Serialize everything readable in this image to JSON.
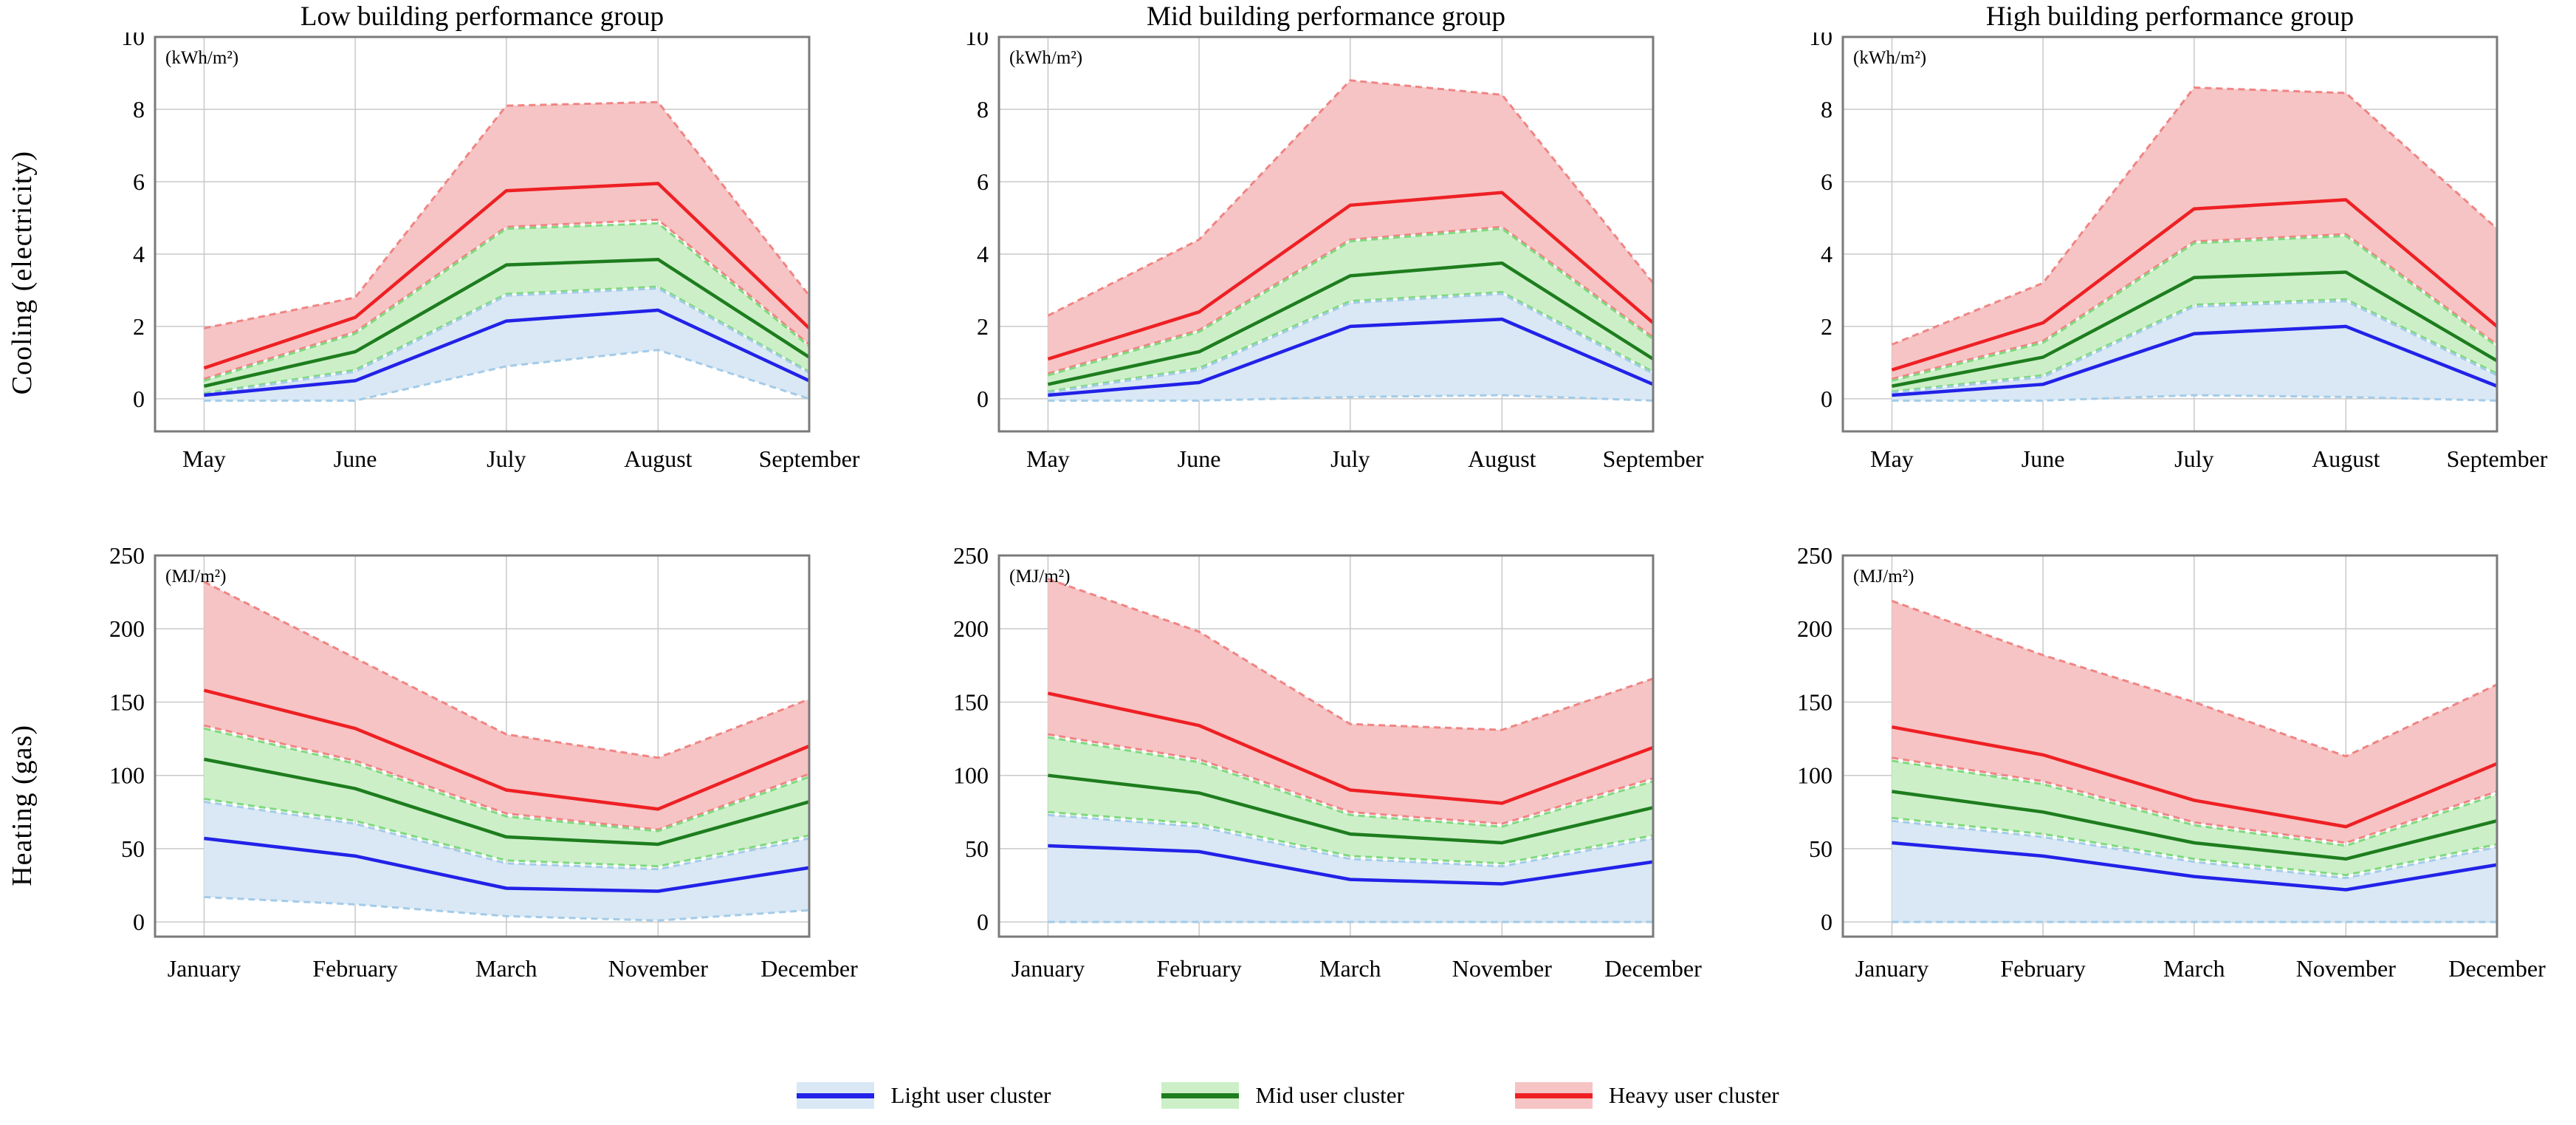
{
  "columns": [
    "Low building performance group",
    "Mid building performance group",
    "High building performance group"
  ],
  "rows": [
    {
      "ylabel": "Cooling (electricity)",
      "unit": "(kWh/m²)",
      "months": [
        "May",
        "June",
        "July",
        "August",
        "September"
      ],
      "yticks": [
        0,
        2,
        4,
        6,
        8,
        10
      ],
      "ymin": -0.9,
      "ymax": 10
    },
    {
      "ylabel": "Heating (gas)",
      "unit": "(MJ/m²)",
      "months": [
        "January",
        "February",
        "March",
        "November",
        "December"
      ],
      "yticks": [
        0,
        50,
        100,
        150,
        200,
        250
      ],
      "ymin": -10,
      "ymax": 250
    }
  ],
  "legend": {
    "items": [
      {
        "key": "light",
        "label": "Light user cluster"
      },
      {
        "key": "mid",
        "label": "Mid user cluster"
      },
      {
        "key": "heavy",
        "label": "Heavy user cluster"
      }
    ]
  },
  "colors": {
    "grid": "#c9c9c9",
    "border": "#7a7a7a",
    "background": "#ffffff",
    "clusters": {
      "light": {
        "line": "#2222e8",
        "band": "#d9e8f4",
        "dash": "#a3cbe8"
      },
      "mid": {
        "line": "#1e7d1e",
        "band": "#ccefc8",
        "dash": "#7fd97f"
      },
      "heavy": {
        "line": "#ee2024",
        "band": "#f6c4c4",
        "dash": "#f08484"
      }
    }
  },
  "chart_data": [
    {
      "type": "line-band",
      "row": 0,
      "title": "Low building performance group",
      "unit": "(kWh/m²)",
      "x": [
        "May",
        "June",
        "July",
        "August",
        "September"
      ],
      "series": [
        {
          "cluster": "heavy",
          "name": "Heavy user cluster",
          "mean": [
            0.85,
            2.25,
            5.75,
            5.95,
            1.95
          ],
          "upper": [
            1.95,
            2.8,
            8.1,
            8.2,
            2.85
          ],
          "lower": [
            0.55,
            1.85,
            4.75,
            4.95,
            1.5
          ]
        },
        {
          "cluster": "mid",
          "name": "Mid user cluster",
          "mean": [
            0.35,
            1.3,
            3.7,
            3.85,
            1.15
          ],
          "upper": [
            0.5,
            1.8,
            4.7,
            4.85,
            1.45
          ],
          "lower": [
            0.15,
            0.8,
            2.9,
            3.1,
            0.75
          ]
        },
        {
          "cluster": "light",
          "name": "Light user cluster",
          "mean": [
            0.1,
            0.5,
            2.15,
            2.45,
            0.5
          ],
          "upper": [
            0.12,
            0.75,
            2.85,
            3.05,
            0.72
          ],
          "lower": [
            -0.05,
            -0.05,
            0.9,
            1.35,
            0.0
          ]
        }
      ]
    },
    {
      "type": "line-band",
      "row": 0,
      "title": "Mid building performance group",
      "unit": "(kWh/m²)",
      "x": [
        "May",
        "June",
        "July",
        "August",
        "September"
      ],
      "series": [
        {
          "cluster": "heavy",
          "name": "Heavy user cluster",
          "mean": [
            1.1,
            2.4,
            5.35,
            5.7,
            2.1
          ],
          "upper": [
            2.3,
            4.4,
            8.8,
            8.4,
            3.2
          ],
          "lower": [
            0.7,
            1.9,
            4.4,
            4.75,
            1.7
          ]
        },
        {
          "cluster": "mid",
          "name": "Mid user cluster",
          "mean": [
            0.4,
            1.3,
            3.4,
            3.75,
            1.1
          ],
          "upper": [
            0.65,
            1.85,
            4.35,
            4.7,
            1.65
          ],
          "lower": [
            0.2,
            0.85,
            2.7,
            2.95,
            0.75
          ]
        },
        {
          "cluster": "light",
          "name": "Light user cluster",
          "mean": [
            0.1,
            0.45,
            2.0,
            2.2,
            0.4
          ],
          "upper": [
            0.17,
            0.8,
            2.65,
            2.9,
            0.7
          ],
          "lower": [
            -0.05,
            -0.05,
            0.05,
            0.1,
            -0.05
          ]
        }
      ]
    },
    {
      "type": "line-band",
      "row": 0,
      "title": "High building performance group",
      "unit": "(kWh/m²)",
      "x": [
        "May",
        "June",
        "July",
        "August",
        "September"
      ],
      "series": [
        {
          "cluster": "heavy",
          "name": "Heavy user cluster",
          "mean": [
            0.8,
            2.1,
            5.25,
            5.5,
            2.0
          ],
          "upper": [
            1.5,
            3.2,
            8.6,
            8.45,
            4.7
          ],
          "lower": [
            0.55,
            1.6,
            4.35,
            4.55,
            1.5
          ]
        },
        {
          "cluster": "mid",
          "name": "Mid user cluster",
          "mean": [
            0.35,
            1.15,
            3.35,
            3.5,
            1.05
          ],
          "upper": [
            0.5,
            1.55,
            4.3,
            4.5,
            1.45
          ],
          "lower": [
            0.2,
            0.65,
            2.6,
            2.75,
            0.7
          ]
        },
        {
          "cluster": "light",
          "name": "Light user cluster",
          "mean": [
            0.1,
            0.4,
            1.8,
            2.0,
            0.35
          ],
          "upper": [
            0.17,
            0.6,
            2.55,
            2.7,
            0.65
          ],
          "lower": [
            -0.05,
            -0.05,
            0.1,
            0.05,
            -0.05
          ]
        }
      ]
    },
    {
      "type": "line-band",
      "row": 1,
      "title": "",
      "unit": "(MJ/m²)",
      "x": [
        "January",
        "February",
        "March",
        "November",
        "December"
      ],
      "series": [
        {
          "cluster": "heavy",
          "name": "Heavy user cluster",
          "mean": [
            158,
            132,
            90,
            77,
            120
          ],
          "upper": [
            232,
            180,
            128,
            112,
            152
          ],
          "lower": [
            134,
            110,
            74,
            63,
            101
          ]
        },
        {
          "cluster": "mid",
          "name": "Mid user cluster",
          "mean": [
            111,
            91,
            58,
            53,
            82
          ],
          "upper": [
            132,
            108,
            72,
            62,
            99
          ],
          "lower": [
            84,
            69,
            42,
            38,
            59
          ]
        },
        {
          "cluster": "light",
          "name": "Light user cluster",
          "mean": [
            57,
            45,
            23,
            21,
            37
          ],
          "upper": [
            82,
            67,
            40,
            36,
            57
          ],
          "lower": [
            17,
            12,
            4,
            1,
            8
          ]
        }
      ]
    },
    {
      "type": "line-band",
      "row": 1,
      "title": "",
      "unit": "(MJ/m²)",
      "x": [
        "January",
        "February",
        "March",
        "November",
        "December"
      ],
      "series": [
        {
          "cluster": "heavy",
          "name": "Heavy user cluster",
          "mean": [
            156,
            134,
            90,
            81,
            119
          ],
          "upper": [
            234,
            198,
            135,
            131,
            166
          ],
          "lower": [
            128,
            111,
            75,
            67,
            98
          ]
        },
        {
          "cluster": "mid",
          "name": "Mid user cluster",
          "mean": [
            100,
            88,
            60,
            54,
            78
          ],
          "upper": [
            126,
            109,
            73,
            65,
            96
          ],
          "lower": [
            75,
            67,
            45,
            40,
            59
          ]
        },
        {
          "cluster": "light",
          "name": "Light user cluster",
          "mean": [
            52,
            48,
            29,
            26,
            41
          ],
          "upper": [
            73,
            65,
            43,
            38,
            57
          ],
          "lower": [
            0,
            0,
            0,
            0,
            0
          ]
        }
      ]
    },
    {
      "type": "line-band",
      "row": 1,
      "title": "",
      "unit": "(MJ/m²)",
      "x": [
        "January",
        "February",
        "March",
        "November",
        "December"
      ],
      "series": [
        {
          "cluster": "heavy",
          "name": "Heavy user cluster",
          "mean": [
            133,
            114,
            83,
            65,
            108
          ],
          "upper": [
            219,
            182,
            150,
            113,
            162
          ],
          "lower": [
            112,
            96,
            68,
            54,
            89
          ]
        },
        {
          "cluster": "mid",
          "name": "Mid user cluster",
          "mean": [
            89,
            75,
            54,
            43,
            69
          ],
          "upper": [
            110,
            94,
            66,
            52,
            87
          ],
          "lower": [
            71,
            60,
            43,
            32,
            53
          ]
        },
        {
          "cluster": "light",
          "name": "Light user cluster",
          "mean": [
            54,
            45,
            31,
            22,
            39
          ],
          "upper": [
            69,
            58,
            41,
            30,
            51
          ],
          "lower": [
            0,
            0,
            0,
            0,
            0
          ]
        }
      ]
    }
  ]
}
